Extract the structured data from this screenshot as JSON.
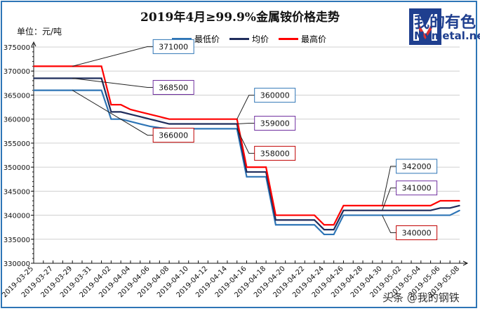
{
  "header": {
    "title": "2019年4月≥99.9%金属铵价格走势",
    "unit": "单位：元/吨"
  },
  "logo": {
    "cn": "我的有色",
    "en": "Mymetal.net"
  },
  "watermark": "头条 @我的钢铁",
  "chart_data": {
    "type": "line",
    "title": "2019年4月≥99.9%金属铵价格走势",
    "ylabel": "单位：元/吨",
    "ylim": [
      330000,
      375000
    ],
    "yticks": [
      330000,
      335000,
      340000,
      345000,
      350000,
      355000,
      360000,
      365000,
      370000,
      375000
    ],
    "grid": true,
    "legend_position": "top",
    "x": [
      "2019-03-25",
      "2019-03-26",
      "2019-03-27",
      "2019-03-28",
      "2019-03-29",
      "2019-03-30",
      "2019-03-31",
      "2019-04-01",
      "2019-04-02",
      "2019-04-03",
      "2019-04-04",
      "2019-04-05",
      "2019-04-06",
      "2019-04-07",
      "2019-04-08",
      "2019-04-09",
      "2019-04-10",
      "2019-04-11",
      "2019-04-12",
      "2019-04-13",
      "2019-04-14",
      "2019-04-15",
      "2019-04-16",
      "2019-04-17",
      "2019-04-18",
      "2019-04-19",
      "2019-04-20",
      "2019-04-21",
      "2019-04-22",
      "2019-04-23",
      "2019-04-24",
      "2019-04-25",
      "2019-04-26",
      "2019-04-27",
      "2019-04-28",
      "2019-04-29",
      "2019-04-30",
      "2019-05-01",
      "2019-05-02",
      "2019-05-03",
      "2019-05-04",
      "2019-05-05",
      "2019-05-06",
      "2019-05-07",
      "2019-05-08"
    ],
    "xtick_labels": [
      "2019-03-25",
      "2019-03-27",
      "2019-03-29",
      "2019-03-31",
      "2019-04-02",
      "2019-04-04",
      "2019-04-06",
      "2019-04-08",
      "2019-04-10",
      "2019-04-12",
      "2019-04-14",
      "2019-04-16",
      "2019-04-18",
      "2019-04-20",
      "2019-04-22",
      "2019-04-24",
      "2019-04-26",
      "2019-04-28",
      "2019-04-30",
      "2019-05-02",
      "2019-05-04",
      "2019-05-06",
      "2019-05-08"
    ],
    "series": [
      {
        "name": "最低价",
        "color": "#2e75b6",
        "values": [
          366000,
          366000,
          366000,
          366000,
          366000,
          366000,
          366000,
          366000,
          360000,
          360000,
          359500,
          359000,
          358500,
          358200,
          358000,
          358000,
          358000,
          358000,
          358000,
          358000,
          358000,
          358000,
          348000,
          348000,
          348000,
          338000,
          338000,
          338000,
          338000,
          338000,
          336000,
          336000,
          340000,
          340000,
          340000,
          340000,
          340000,
          340000,
          340000,
          340000,
          340000,
          340000,
          340000,
          340000,
          341000
        ]
      },
      {
        "name": "均价",
        "color": "#1f2d5c",
        "values": [
          368500,
          368500,
          368500,
          368500,
          368500,
          368500,
          368500,
          368500,
          361500,
          361500,
          361000,
          360500,
          360000,
          359500,
          359000,
          359000,
          359000,
          359000,
          359000,
          359000,
          359000,
          359000,
          349000,
          349000,
          349000,
          339000,
          339000,
          339000,
          339000,
          339000,
          337000,
          337000,
          341000,
          341000,
          341000,
          341000,
          341000,
          341000,
          341000,
          341000,
          341000,
          341000,
          341500,
          341500,
          342000
        ]
      },
      {
        "name": "最高价",
        "color": "#ff0000",
        "values": [
          371000,
          371000,
          371000,
          371000,
          371000,
          371000,
          371000,
          371000,
          363000,
          363000,
          362000,
          361500,
          361000,
          360500,
          360000,
          360000,
          360000,
          360000,
          360000,
          360000,
          360000,
          360000,
          350000,
          350000,
          350000,
          340000,
          340000,
          340000,
          340000,
          340000,
          338000,
          338000,
          342000,
          342000,
          342000,
          342000,
          342000,
          342000,
          342000,
          342000,
          342000,
          342000,
          343000,
          343000,
          343000
        ]
      }
    ],
    "annotations": [
      {
        "text": "371000",
        "series": 2,
        "index": 4,
        "border": "#2e75b6",
        "lx": 2,
        "ly": 371000,
        "dx": 115,
        "dy": -28
      },
      {
        "text": "368500",
        "series": 1,
        "index": 4,
        "border": "#7030a0",
        "lx": 0,
        "ly": 0,
        "dx": 115,
        "dy": 13
      },
      {
        "text": "366000",
        "series": 0,
        "index": 4,
        "border": "#c00000",
        "lx": 0,
        "ly": 0,
        "dx": 115,
        "dy": 64
      },
      {
        "text": "360000",
        "series": 2,
        "index": 21,
        "border": "#2e75b6",
        "lx": 0,
        "ly": 0,
        "dx": 25,
        "dy": -34
      },
      {
        "text": "359000",
        "series": 1,
        "index": 21,
        "border": "#7030a0",
        "lx": 0,
        "ly": 0,
        "dx": 25,
        "dy": -1
      },
      {
        "text": "358000",
        "series": 0,
        "index": 21,
        "border": "#c00000",
        "lx": 0,
        "ly": 0,
        "dx": 25,
        "dy": 35
      },
      {
        "text": "342000",
        "series": 2,
        "index": 36,
        "border": "#2e75b6",
        "lx": 0,
        "ly": 0,
        "dx": 20,
        "dy": -56
      },
      {
        "text": "341000",
        "series": 1,
        "index": 36,
        "border": "#7030a0",
        "lx": 0,
        "ly": 0,
        "dx": 20,
        "dy": -32
      },
      {
        "text": "340000",
        "series": 0,
        "index": 36,
        "border": "#c00000",
        "lx": 0,
        "ly": 0,
        "dx": 20,
        "dy": 25
      }
    ]
  }
}
